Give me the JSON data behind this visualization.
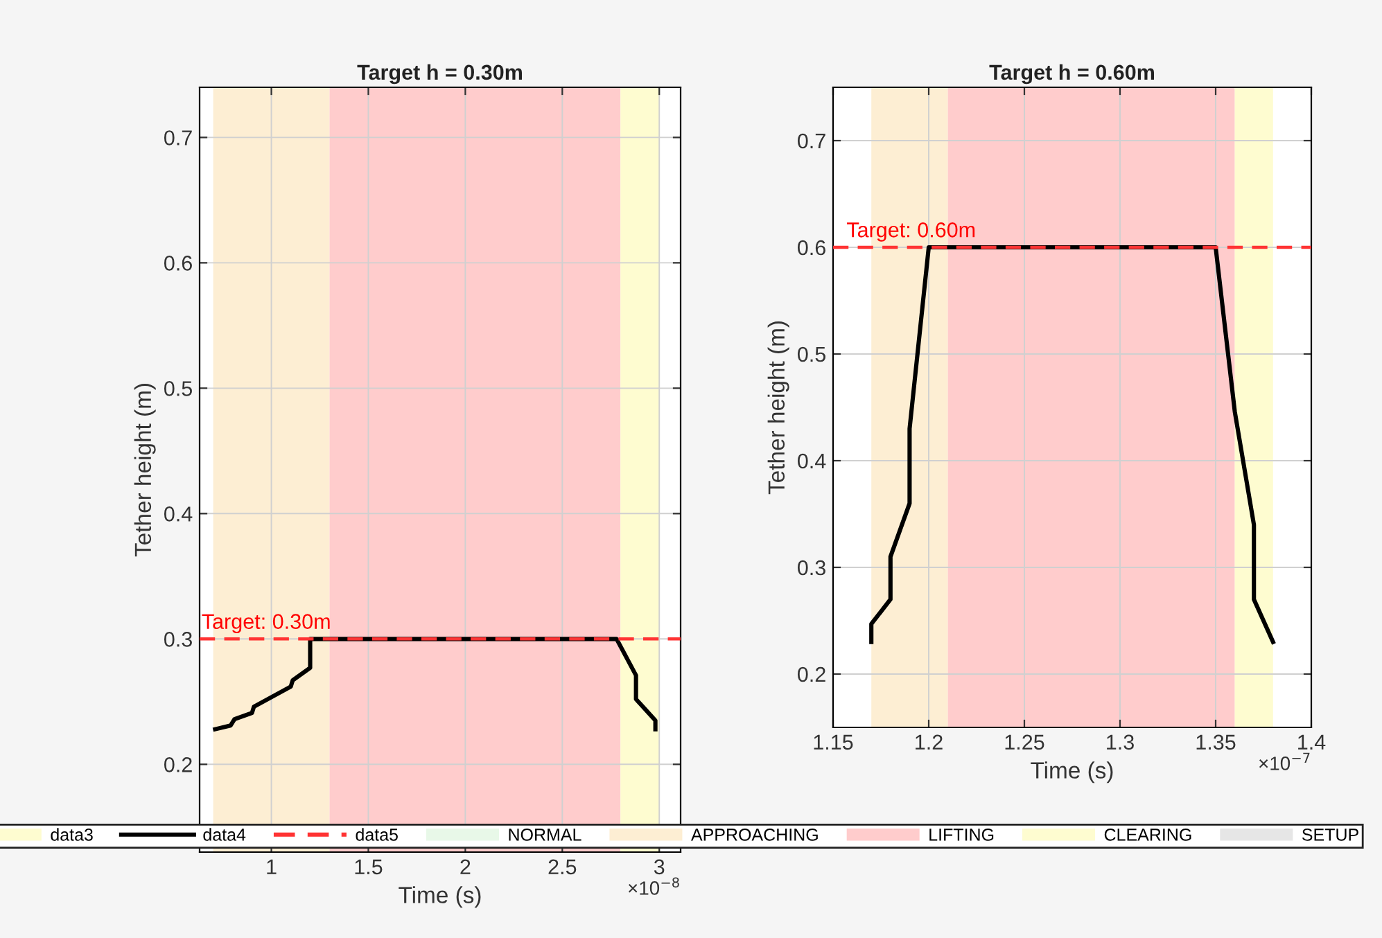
{
  "chart_data": [
    {
      "type": "line",
      "title": "Target h = 0.30m",
      "xlabel": "Time (s)",
      "ylabel": "Tether height (m)",
      "xlim": [
        0.63,
        3.11
      ],
      "xticks": [
        1,
        1.5,
        2,
        2.5,
        3
      ],
      "ylim": [
        0.13,
        0.74
      ],
      "yticks": [
        0.2,
        0.3,
        0.4,
        0.5,
        0.6,
        0.7
      ],
      "grid": true,
      "legend": "bottom",
      "series": [
        {
          "name": "data3",
          "type": "area",
          "color": "#fefcd0"
        },
        {
          "name": "data4",
          "color": "#000000",
          "line_style": "solid",
          "x": [
            0.71,
            0.79,
            0.81,
            0.9,
            0.91,
            1.1,
            1.11,
            1.2,
            1.2,
            2.78,
            2.88,
            2.88,
            2.98,
            2.98
          ],
          "values": [
            0.228,
            0.231,
            0.236,
            0.241,
            0.246,
            0.262,
            0.267,
            0.277,
            0.3,
            0.3,
            0.271,
            0.252,
            0.235,
            0.228
          ]
        },
        {
          "name": "data5",
          "color": "#ff3333",
          "line_style": "dashed",
          "x": [
            0.63,
            3.11
          ],
          "values": [
            0.3,
            0.3
          ]
        },
        {
          "name": "NORMAL",
          "type": "area",
          "color": "#e8f8e8"
        },
        {
          "name": "APPROACHING",
          "type": "area",
          "color": "#fdeed3"
        },
        {
          "name": "LIFTING",
          "type": "area",
          "color": "#ffcccc"
        },
        {
          "name": "CLEARING",
          "type": "area",
          "color": "#fefcd0"
        },
        {
          "name": "SETUP",
          "type": "area",
          "color": "#e6e6e6"
        }
      ],
      "bands": [
        {
          "axis": "x",
          "from": 0.7,
          "to": 1.3,
          "color": "#fdeed3"
        },
        {
          "axis": "x",
          "from": 1.3,
          "to": 2.8,
          "color": "#ffcccc"
        },
        {
          "axis": "x",
          "from": 2.8,
          "to": 3.0,
          "color": "#fefcd0"
        }
      ],
      "annotations": [
        {
          "text": "Target: 0.30m",
          "x": 0.64,
          "y": 0.3
        },
        "×10$^{−8}$"
      ]
    },
    {
      "type": "line",
      "title": "Target h = 0.60m",
      "xlabel": "Time (s)",
      "ylabel": "Tether height (m)",
      "xlim": [
        1.15,
        1.4
      ],
      "xticks": [
        1.15,
        1.2,
        1.25,
        1.3,
        1.35,
        1.4
      ],
      "ylim": [
        0.15,
        0.75
      ],
      "yticks": [
        0.2,
        0.3,
        0.4,
        0.5,
        0.6,
        0.7
      ],
      "grid": true,
      "series": [
        {
          "color": "#000000",
          "line_style": "solid",
          "x": [
            1.17,
            1.17,
            1.18,
            1.18,
            1.19,
            1.19,
            1.2,
            1.35,
            1.36,
            1.37,
            1.37,
            1.38
          ],
          "values": [
            0.23,
            0.247,
            0.27,
            0.31,
            0.36,
            0.43,
            0.6,
            0.6,
            0.446,
            0.34,
            0.27,
            0.23
          ]
        },
        {
          "color": "#ff3333",
          "line_style": "dashed",
          "x": [
            1.15,
            1.4
          ],
          "values": [
            0.6,
            0.6
          ]
        }
      ],
      "bands": [
        {
          "axis": "x",
          "from": 1.17,
          "to": 1.21,
          "color": "#fdeed3"
        },
        {
          "axis": "x",
          "from": 1.21,
          "to": 1.36,
          "color": "#ffcccc"
        },
        {
          "axis": "x",
          "from": 1.36,
          "to": 1.38,
          "color": "#fefcd0"
        }
      ],
      "annotations": [
        {
          "text": "Target: 0.60m",
          "x": 1.157,
          "y": 0.6
        },
        "×10$^{−7}$"
      ]
    }
  ]
}
